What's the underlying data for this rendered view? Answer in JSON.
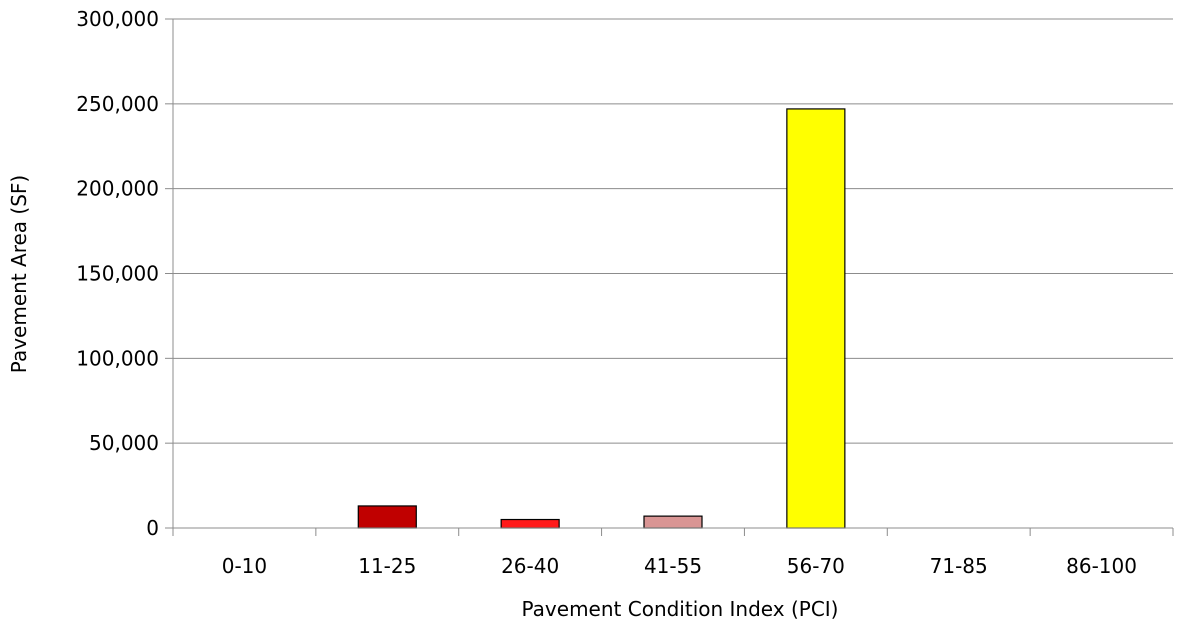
{
  "chart_data": {
    "type": "bar",
    "title": "",
    "xlabel": "Pavement Condition Index (PCI)",
    "ylabel": "Pavement Area (SF)",
    "categories": [
      "0-10",
      "11-25",
      "26-40",
      "41-55",
      "56-70",
      "71-85",
      "86-100"
    ],
    "values": [
      0,
      13000,
      5000,
      7000,
      247000,
      0,
      0
    ],
    "bar_colors": [
      "#c00000",
      "#c00000",
      "#ff1a1a",
      "#d99594",
      "#ffff00",
      "#ffffff",
      "#ffffff"
    ],
    "ylim": [
      0,
      300000
    ],
    "yticks": [
      "0",
      "50,000",
      "100,000",
      "150,000",
      "200,000",
      "250,000",
      "300,000"
    ],
    "ytick_values": [
      0,
      50000,
      100000,
      150000,
      200000,
      250000,
      300000
    ],
    "grid": true,
    "legend": "none"
  }
}
